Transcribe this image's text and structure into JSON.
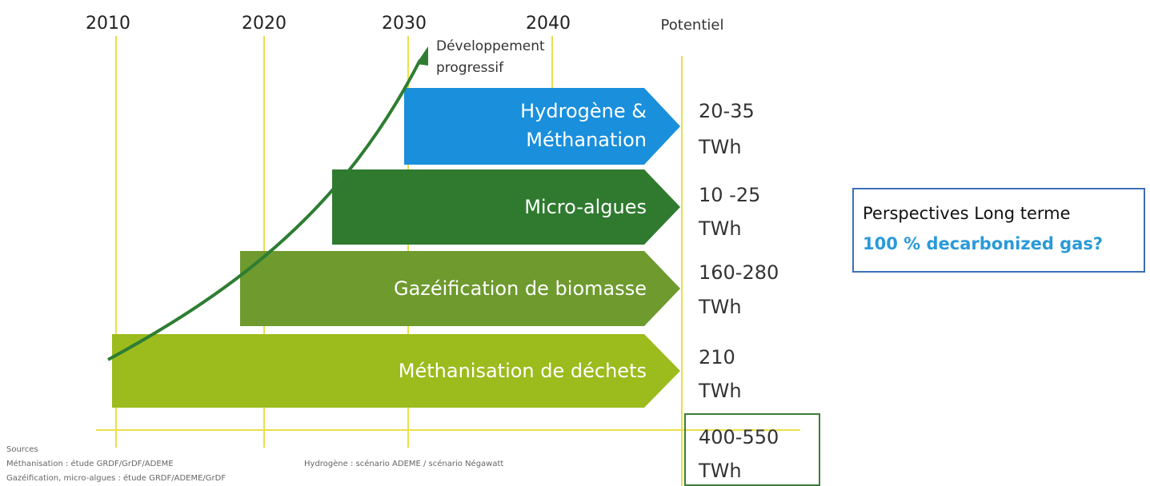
{
  "timeline": {
    "years": [
      "2010",
      "2020",
      "2030",
      "2040"
    ],
    "potential_header": "Potentiel"
  },
  "development": {
    "line1": "Développement",
    "line2": "progressif"
  },
  "pathways": [
    {
      "label": [
        "Hydrogène &",
        "Méthanation"
      ],
      "potential": "20-35",
      "unit": "TWh"
    },
    {
      "label": [
        "Micro-algues"
      ],
      "potential": "10 -25",
      "unit": "TWh"
    },
    {
      "label": [
        "Gazéification de biomasse"
      ],
      "potential": "160-280",
      "unit": "TWh"
    },
    {
      "label": [
        "Méthanisation de déchets"
      ],
      "potential": "210",
      "unit": "TWh"
    }
  ],
  "total": {
    "potential": "400-550",
    "unit": "TWh"
  },
  "perspective": {
    "line1": "Perspectives Long terme",
    "line2": "100 % decarbonized gas?"
  },
  "sources": {
    "title": "Sources",
    "line1": "Méthanisation : étude GRDF/GrDF/ADEME",
    "line2": "Hydrogène : scénario ADEME / scénario Négawatt",
    "line3": "Gazéification, micro-algues : étude GRDF/ADEME/GrDF"
  }
}
